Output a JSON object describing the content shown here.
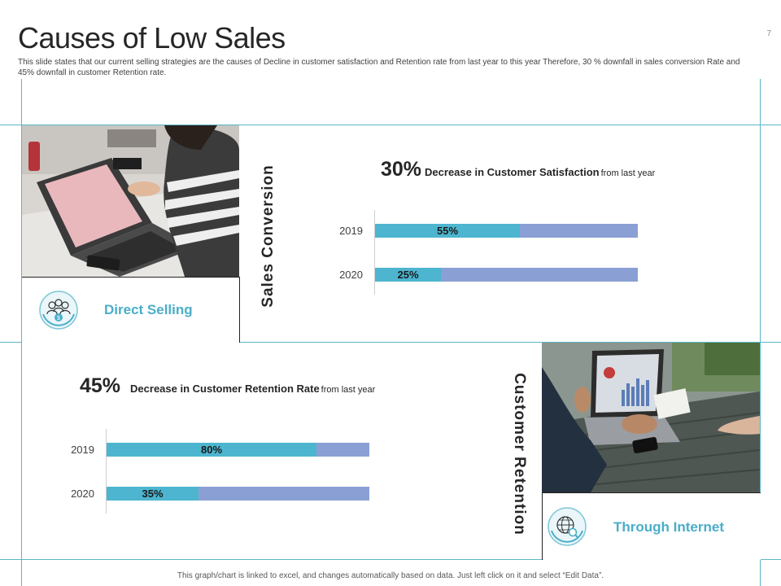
{
  "slide": {
    "title": "Causes of Low Sales",
    "subtitle": "This slide states that our current selling strategies are the causes of Decline in customer satisfaction and Retention rate from last year to this year Therefore, 30 % downfall in sales conversion Rate and 45% downfall in customer Retention rate.",
    "page_number": "7",
    "footer": "This graph/chart is linked to excel, and changes automatically based on data. Just left click on it and select “Edit Data”."
  },
  "sections": {
    "direct_selling": {
      "label": "Direct Selling",
      "icon": "team-money-icon"
    },
    "through_internet": {
      "label": "Through Internet",
      "icon": "globe-search-icon"
    },
    "sales_conversion_title": "Sales Conversion",
    "customer_retention_title": "Customer Retention"
  },
  "chart_data": [
    {
      "type": "bar",
      "orientation": "horizontal",
      "title_value": "30%",
      "title_main": "Decrease in Customer Satisfaction",
      "title_suffix": "from last year",
      "categories": [
        "2019",
        "2020"
      ],
      "values": [
        55,
        25
      ],
      "value_labels": [
        "55%",
        "25%"
      ],
      "xlim": [
        0,
        100
      ],
      "colors": {
        "value": "#4db5cf",
        "remainder": "#8aa0d4"
      }
    },
    {
      "type": "bar",
      "orientation": "horizontal",
      "title_value": "45%",
      "title_main": "Decrease in Customer Retention Rate",
      "title_suffix": "from last year",
      "categories": [
        "2019",
        "2020"
      ],
      "values": [
        80,
        35
      ],
      "value_labels": [
        "80%",
        "35%"
      ],
      "xlim": [
        0,
        100
      ],
      "colors": {
        "value": "#4db5cf",
        "remainder": "#8aa0d4"
      }
    }
  ]
}
